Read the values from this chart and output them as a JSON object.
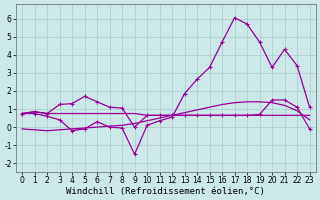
{
  "background_color": "#cce8e8",
  "grid_color": "#aacccc",
  "line_color": "#990099",
  "xlim": [
    -0.5,
    23.5
  ],
  "ylim": [
    -2.5,
    6.8
  ],
  "xticks": [
    0,
    1,
    2,
    3,
    4,
    5,
    6,
    7,
    8,
    9,
    10,
    11,
    12,
    13,
    14,
    15,
    16,
    17,
    18,
    19,
    20,
    21,
    22,
    23
  ],
  "yticks": [
    -2,
    -1,
    0,
    1,
    2,
    3,
    4,
    5,
    6
  ],
  "xlabel": "Windchill (Refroidissement éolien,°C)",
  "series": [
    {
      "x": [
        0,
        1,
        2,
        3,
        4,
        5,
        6,
        7,
        8,
        9,
        10,
        11,
        12,
        13,
        14,
        15,
        16,
        17,
        18,
        19,
        20,
        21,
        22,
        23
      ],
      "y": [
        0.75,
        0.85,
        0.75,
        0.75,
        0.75,
        0.75,
        0.75,
        0.75,
        0.75,
        0.75,
        0.65,
        0.65,
        0.65,
        0.65,
        0.65,
        0.65,
        0.65,
        0.65,
        0.65,
        0.65,
        0.65,
        0.65,
        0.65,
        0.65
      ],
      "marker": null,
      "lw": 0.9
    },
    {
      "x": [
        0,
        1,
        2,
        3,
        4,
        5,
        6,
        7,
        8,
        9,
        10,
        11,
        12,
        13,
        14,
        15,
        16,
        17,
        18,
        19,
        20,
        21,
        22,
        23
      ],
      "y": [
        0.75,
        0.85,
        0.75,
        1.25,
        1.3,
        1.7,
        1.4,
        1.1,
        1.05,
        0.0,
        0.65,
        0.65,
        0.65,
        0.65,
        0.65,
        0.65,
        0.65,
        0.65,
        0.65,
        0.7,
        1.5,
        1.5,
        1.1,
        -0.1
      ],
      "marker": "+",
      "lw": 0.9
    },
    {
      "x": [
        0,
        1,
        2,
        3,
        4,
        5,
        6,
        7,
        8,
        9,
        10,
        11,
        12,
        13,
        14,
        15,
        16,
        17,
        18,
        19,
        20,
        21,
        22,
        23
      ],
      "y": [
        0.75,
        0.75,
        0.6,
        0.4,
        -0.2,
        -0.1,
        0.3,
        0.0,
        -0.05,
        -1.5,
        0.1,
        0.35,
        0.55,
        1.85,
        2.65,
        3.3,
        4.7,
        6.05,
        5.7,
        4.7,
        3.3,
        4.3,
        3.4,
        1.1
      ],
      "marker": "+",
      "lw": 0.9
    },
    {
      "x": [
        0,
        1,
        2,
        3,
        4,
        5,
        6,
        7,
        8,
        9,
        10,
        11,
        12,
        13,
        14,
        15,
        16,
        17,
        18,
        19,
        20,
        21,
        22,
        23
      ],
      "y": [
        -0.1,
        -0.15,
        -0.2,
        -0.15,
        -0.1,
        -0.05,
        0.0,
        0.05,
        0.1,
        0.2,
        0.35,
        0.5,
        0.65,
        0.8,
        0.95,
        1.1,
        1.25,
        1.35,
        1.4,
        1.4,
        1.35,
        1.2,
        0.9,
        0.4
      ],
      "marker": null,
      "lw": 0.9
    }
  ],
  "xlabel_fontsize": 6.5,
  "tick_fontsize": 5.5
}
